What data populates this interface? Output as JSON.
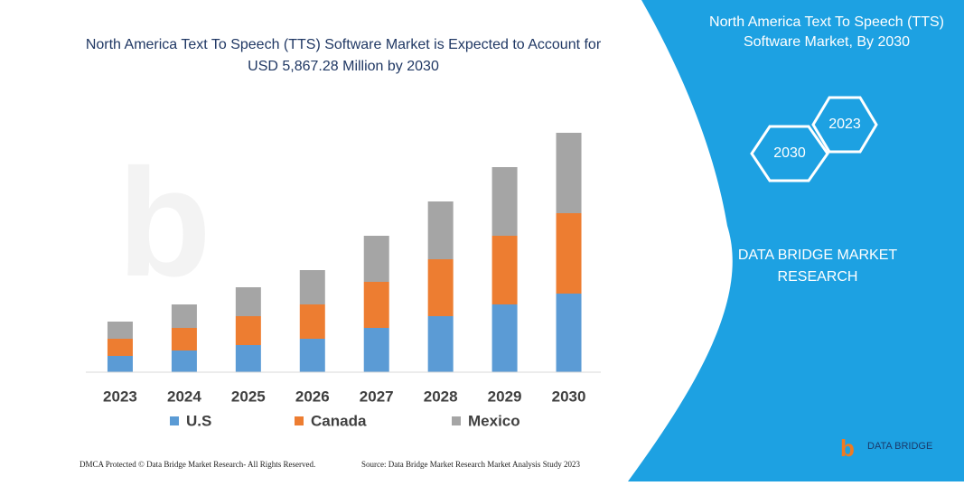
{
  "chart_data": {
    "type": "stacked-bar",
    "title": "North America Text To Speech (TTS) Software Market is Expected to Account for USD 5,867.28 Million by 2030",
    "categories": [
      "2023",
      "2024",
      "2025",
      "2026",
      "2027",
      "2028",
      "2029",
      "2030"
    ],
    "series": [
      {
        "name": "U.S",
        "color": "#5b9bd5",
        "values": [
          18,
          24,
          30,
          37,
          49,
          62,
          75,
          87
        ]
      },
      {
        "name": "Canada",
        "color": "#ed7d31",
        "values": [
          19,
          25,
          32,
          38,
          51,
          63,
          76,
          89
        ]
      },
      {
        "name": "Mexico",
        "color": "#a5a5a5",
        "values": [
          19,
          26,
          32,
          38,
          51,
          64,
          76,
          89
        ]
      }
    ],
    "ylim": [
      0,
      265
    ]
  },
  "panel": {
    "title": "North America Text To Speech (TTS) Software Market, By 2030",
    "hex_left": "2030",
    "hex_right": "2023",
    "company": "DATA BRIDGE MARKET RESEARCH",
    "logo": "DATA BRIDGE"
  },
  "footer": {
    "left": "DMCA Protected © Data Bridge Market Research- All Rights Reserved.",
    "right": "Source: Data Bridge Market Research Market Analysis Study 2023"
  }
}
